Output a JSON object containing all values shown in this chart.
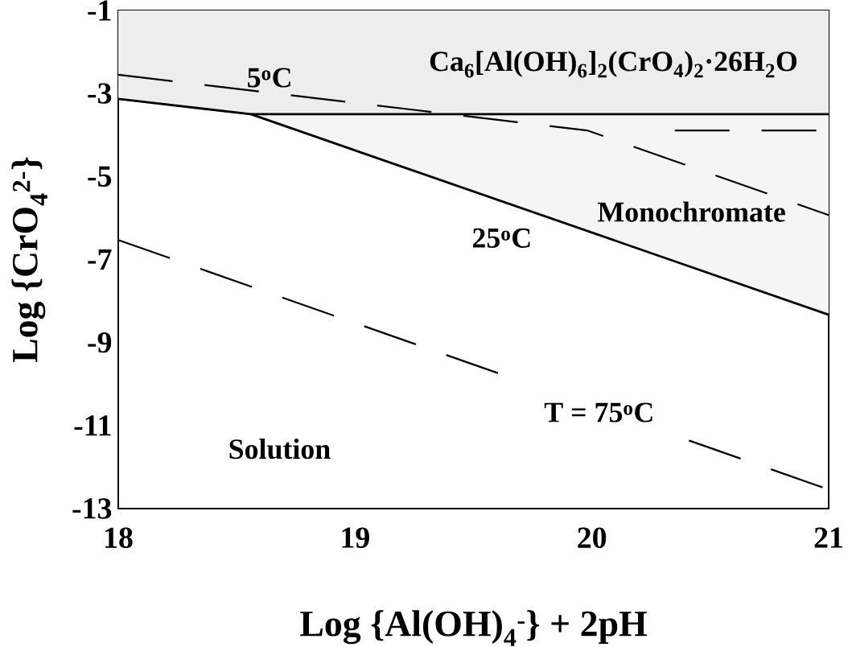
{
  "chart_data": {
    "type": "line",
    "xlabel": "Log {Al(OH)$_{4}$$^{-}$} + 2pH",
    "ylabel": "Log {CrO$_{4}$$^{2-}$}",
    "xlim": [
      18,
      21
    ],
    "ylim": [
      -13,
      -1
    ],
    "xticks": [
      18,
      19,
      20,
      21
    ],
    "yticks": [
      -13,
      -11,
      -9,
      -7,
      -5,
      -3,
      -1
    ],
    "grid": false,
    "series": [
      {
        "color": "#000000",
        "line_style": "solid",
        "x": [
          18,
          18.56,
          21
        ],
        "values": [
          -3.13,
          -3.5,
          -3.5
        ],
        "lower": [
          -3.13,
          -3.5,
          -3.5
        ],
        "upper": [
          -1,
          -1,
          -1
        ]
      },
      {
        "color": "#000000",
        "line_style": "solid",
        "x": [
          18.56,
          21
        ],
        "values": [
          -3.5,
          -8.33
        ],
        "lower": [
          -3.5,
          -8.33
        ],
        "upper": [
          -3.5,
          -3.5
        ]
      },
      {
        "color": "#000000",
        "line_style": "dashed",
        "x": [
          18,
          19.98,
          21
        ],
        "values": [
          -2.55,
          -3.89,
          -5.93
        ]
      },
      {
        "color": "#000000",
        "line_style": "dashed",
        "x": [
          20.35,
          21
        ],
        "values": [
          -3.89,
          -3.89
        ]
      },
      {
        "color": "#000000",
        "line_style": "dashed",
        "x": [
          18,
          19.62,
          20.03,
          20.41,
          21
        ],
        "values": [
          -6.53,
          -9.77,
          null,
          -11.36,
          -12.54
        ]
      }
    ],
    "annotations": [
      "5$^{o}$C",
      "Ca$_{6}$[Al(OH)$_{6}$]$_{2}$(CrO$_{4}$)$_{2}$·26H$_{2}$O",
      "Monochromate",
      "25$^{o}$C",
      "T = 75$^{o}$C",
      "Solution"
    ]
  }
}
